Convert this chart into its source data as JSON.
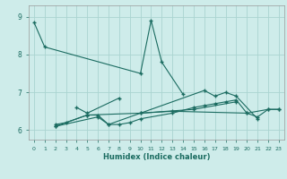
{
  "xlabel": "Humidex (Indice chaleur)",
  "background_color": "#ceecea",
  "grid_color": "#aad4d0",
  "line_color": "#1a6b60",
  "xlim": [
    -0.5,
    23.5
  ],
  "ylim": [
    5.75,
    9.3
  ],
  "yticks": [
    6,
    7,
    8,
    9
  ],
  "xticks": [
    0,
    1,
    2,
    3,
    4,
    5,
    6,
    7,
    8,
    9,
    10,
    11,
    12,
    13,
    14,
    15,
    16,
    17,
    18,
    19,
    20,
    21,
    22,
    23
  ],
  "series": [
    {
      "x": [
        0,
        1,
        10,
        11,
        12,
        14
      ],
      "y": [
        8.85,
        8.2,
        7.5,
        8.9,
        7.8,
        6.95
      ]
    },
    {
      "x": [
        4,
        5,
        8
      ],
      "y": [
        6.6,
        6.45,
        6.85
      ]
    },
    {
      "x": [
        2,
        3,
        5,
        6,
        7,
        8,
        9,
        10,
        13,
        15,
        16,
        17,
        18,
        19,
        20,
        21,
        22,
        23
      ],
      "y": [
        6.15,
        6.2,
        6.4,
        6.4,
        6.15,
        6.15,
        6.2,
        6.3,
        6.45,
        6.6,
        6.65,
        6.7,
        6.75,
        6.8,
        6.45,
        6.35,
        6.55,
        6.55
      ]
    },
    {
      "x": [
        2,
        6,
        7,
        16,
        17,
        18,
        19,
        21
      ],
      "y": [
        6.1,
        6.35,
        6.15,
        7.05,
        6.9,
        7.0,
        6.9,
        6.3
      ]
    },
    {
      "x": [
        10,
        13,
        20,
        22,
        23
      ],
      "y": [
        6.45,
        6.5,
        6.45,
        6.55,
        6.55
      ]
    },
    {
      "x": [
        2,
        5,
        10,
        15,
        19
      ],
      "y": [
        6.1,
        6.4,
        6.45,
        6.55,
        6.75
      ]
    }
  ]
}
